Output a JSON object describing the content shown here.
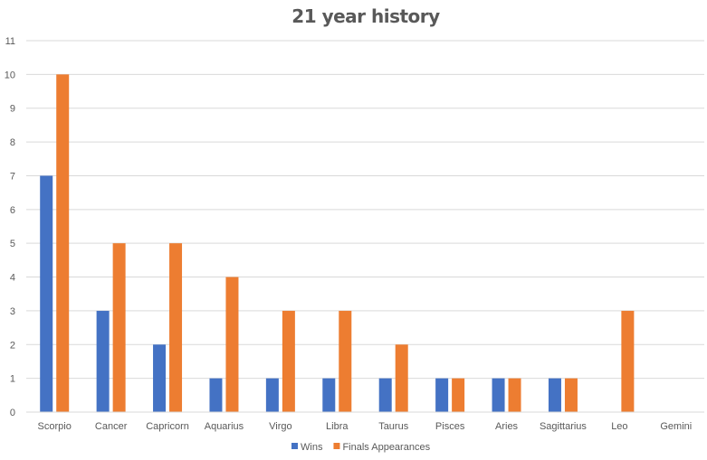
{
  "chart_data": {
    "type": "bar",
    "title": "21 year history",
    "xlabel": "",
    "ylabel": "",
    "ylim": [
      0,
      11
    ],
    "yticks": [
      0,
      1,
      2,
      3,
      4,
      5,
      6,
      7,
      8,
      9,
      10,
      11
    ],
    "grid": true,
    "legend_position": "bottom",
    "categories": [
      "Scorpio",
      "Cancer",
      "Capricorn",
      "Aquarius",
      "Virgo",
      "Libra",
      "Taurus",
      "Pisces",
      "Aries",
      "Sagittarius",
      "Leo",
      "Gemini"
    ],
    "series": [
      {
        "name": "Wins",
        "color": "#4472c4",
        "values": [
          7,
          3,
          2,
          1,
          1,
          1,
          1,
          1,
          1,
          1,
          0,
          0
        ]
      },
      {
        "name": "Finals Appearances",
        "color": "#ed7d31",
        "values": [
          10,
          5,
          5,
          4,
          3,
          3,
          2,
          1,
          1,
          1,
          3,
          0
        ]
      }
    ]
  }
}
